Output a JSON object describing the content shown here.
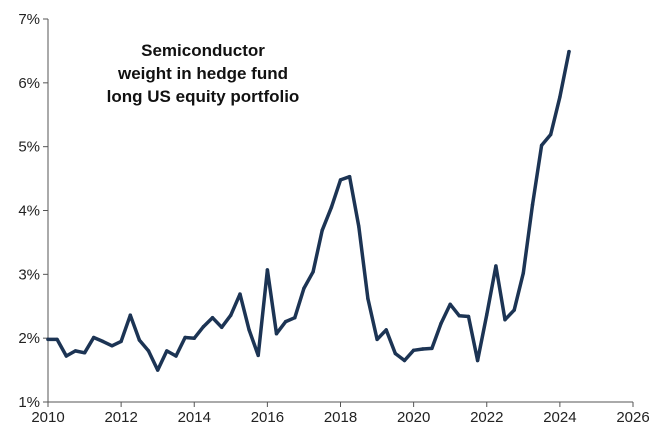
{
  "chart_data": {
    "type": "line",
    "title": "Semiconductor weight in hedge fund long US equity portfolio",
    "title_lines": [
      "Semiconductor",
      "weight in hedge fund",
      "long US equity portfolio"
    ],
    "xlabel": "",
    "ylabel": "",
    "xlim": [
      2010,
      2026
    ],
    "ylim": [
      1,
      7
    ],
    "x_ticks": [
      "2010",
      "2012",
      "2014",
      "2016",
      "2018",
      "2020",
      "2022",
      "2024",
      "2026"
    ],
    "y_ticks": [
      "1%",
      "2%",
      "3%",
      "4%",
      "5%",
      "6%",
      "7%"
    ],
    "grid": false,
    "legend": "none",
    "line_color": "#1c3454",
    "series": [
      {
        "x": [
          2010.0,
          2010.25,
          2010.5,
          2010.75,
          2011.0,
          2011.25,
          2011.5,
          2011.75,
          2012.0,
          2012.25,
          2012.5,
          2012.75,
          2013.0,
          2013.25,
          2013.5,
          2013.75,
          2014.0,
          2014.25,
          2014.5,
          2014.75,
          2015.0,
          2015.25,
          2015.5,
          2015.75,
          2016.0,
          2016.25,
          2016.5,
          2016.75,
          2017.0,
          2017.25,
          2017.5,
          2017.75,
          2018.0,
          2018.25,
          2018.5,
          2018.75,
          2019.0,
          2019.25,
          2019.5,
          2019.75,
          2020.0,
          2020.25,
          2020.5,
          2020.75,
          2021.0,
          2021.25,
          2021.5,
          2021.75,
          2022.0,
          2022.25,
          2022.5,
          2022.75,
          2023.0,
          2023.25,
          2023.5,
          2023.75,
          2024.0,
          2024.25
        ],
        "values": [
          1.98,
          1.98,
          1.72,
          1.8,
          1.77,
          2.01,
          1.95,
          1.88,
          1.95,
          2.36,
          1.97,
          1.8,
          1.5,
          1.8,
          1.72,
          2.01,
          2.0,
          2.18,
          2.32,
          2.17,
          2.36,
          2.69,
          2.13,
          1.73,
          3.07,
          2.07,
          2.26,
          2.32,
          2.78,
          3.04,
          3.69,
          4.05,
          4.48,
          4.53,
          3.75,
          2.62,
          1.98,
          2.13,
          1.76,
          1.65,
          1.81,
          1.83,
          1.84,
          2.23,
          2.53,
          2.35,
          2.34,
          1.65,
          2.37,
          3.13,
          2.29,
          2.44,
          3.02,
          4.09,
          5.02,
          5.19,
          5.78,
          6.49
        ]
      }
    ]
  }
}
